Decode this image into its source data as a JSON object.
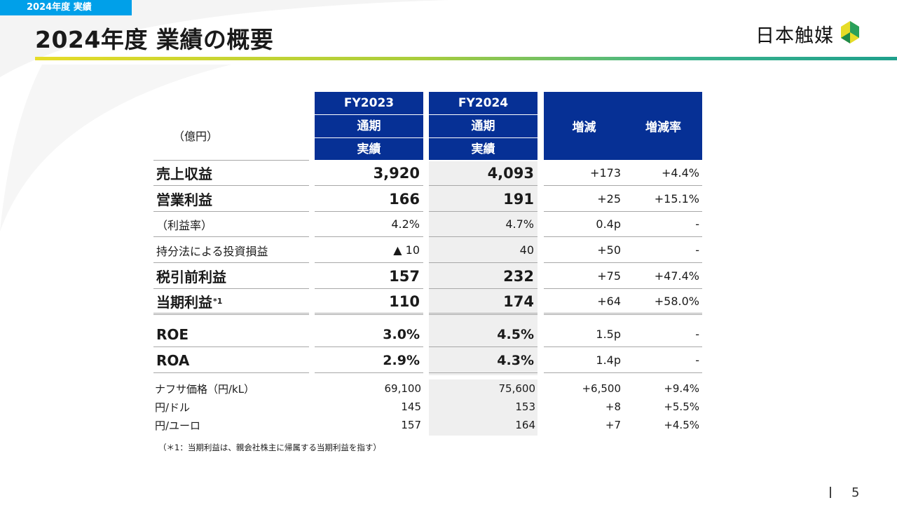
{
  "section_tag": "2024年度 実績",
  "page_title": "2024年度 業績の概要",
  "logo": {
    "text": "日本触媒",
    "mark_icon": "nippon-shokubai-leaf-mark"
  },
  "colors": {
    "header_blue": "#063095",
    "tag_blue": "#00a0e9",
    "rule_start": "#e6dc28",
    "rule_end": "#1fa08c",
    "shade": "#efefef"
  },
  "table": {
    "unit_label": "（億円）",
    "headers": {
      "fy2023": [
        "FY2023",
        "通期",
        "実績"
      ],
      "fy2024": [
        "FY2024",
        "通期",
        "実績"
      ],
      "change": "増減",
      "change_rate": "増減率"
    },
    "rows": [
      {
        "label": "売上収益",
        "fy2023": "3,920",
        "fy2024": "4,093",
        "change": "+173",
        "rate": "+4.4%"
      },
      {
        "label": "営業利益",
        "fy2023": "166",
        "fy2024": "191",
        "change": "+25",
        "rate": "+15.1%"
      },
      {
        "label": "（利益率）",
        "fy2023": "4.2%",
        "fy2024": "4.7%",
        "change": "0.4p",
        "rate": "-"
      },
      {
        "label": "持分法による投資損益",
        "fy2023": "▲ 10",
        "fy2024": "40",
        "change": "+50",
        "rate": "-"
      },
      {
        "label": "税引前利益",
        "fy2023": "157",
        "fy2024": "232",
        "change": "+75",
        "rate": "+47.4%"
      },
      {
        "label": "当期利益",
        "label_sup": "*1",
        "fy2023": "110",
        "fy2024": "174",
        "change": "+64",
        "rate": "+58.0%"
      },
      {
        "label": "ROE",
        "fy2023": "3.0%",
        "fy2024": "4.5%",
        "change": "1.5p",
        "rate": "-"
      },
      {
        "label": "ROA",
        "fy2023": "2.9%",
        "fy2024": "4.3%",
        "change": "1.4p",
        "rate": "-"
      }
    ],
    "market": [
      {
        "label": "ナフサ価格（円/kL）",
        "fy2023": "69,100",
        "fy2024": "75,600",
        "change": "+6,500",
        "rate": "+9.4%"
      },
      {
        "label": "円/ドル",
        "fy2023": "145",
        "fy2024": "153",
        "change": "+8",
        "rate": "+5.5%"
      },
      {
        "label": "円/ユーロ",
        "fy2023": "157",
        "fy2024": "164",
        "change": "+7",
        "rate": "+4.5%"
      }
    ]
  },
  "footnote": "（＊1：当期利益は、親会社株主に帰属する当期利益を指す）",
  "page_number": "5"
}
